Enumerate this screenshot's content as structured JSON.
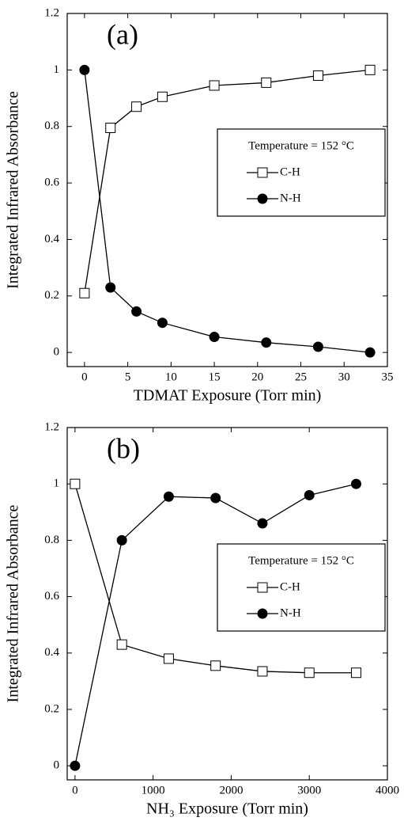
{
  "chart_data": [
    {
      "type": "line",
      "annotation": "(a)",
      "xlabel": "TDMAT Exposure (Torr min)",
      "ylabel": "Integrated Infrared Absorbance",
      "legend_title": "Temperature = 152 °C",
      "x": [
        0,
        3,
        6,
        9,
        15,
        21,
        27,
        33
      ],
      "series": [
        {
          "name": "C-H",
          "color": "#000000",
          "marker": "square",
          "values": [
            0.21,
            0.795,
            0.87,
            0.905,
            0.945,
            0.955,
            0.98,
            1.0
          ]
        },
        {
          "name": "N-H",
          "color": "#000000",
          "marker": "circle",
          "values": [
            1.0,
            0.23,
            0.145,
            0.105,
            0.055,
            0.035,
            0.02,
            0.0
          ]
        }
      ],
      "xlim": [
        -2,
        35
      ],
      "xticks": [
        0,
        5,
        10,
        15,
        20,
        25,
        30,
        35
      ],
      "ylim": [
        -0.05,
        1.2
      ],
      "yticks": [
        0,
        0.2,
        0.4,
        0.6,
        0.8,
        1,
        1.2
      ]
    },
    {
      "type": "line",
      "annotation": "(b)",
      "xlabel": "NH₃ Exposure (Torr min)",
      "ylabel": "Integrated Infrared Absorbance",
      "legend_title": "Temperature = 152 °C",
      "x": [
        0,
        600,
        1200,
        1800,
        2400,
        3000,
        3600
      ],
      "series": [
        {
          "name": "C-H",
          "color": "#000000",
          "marker": "square",
          "values": [
            1.0,
            0.43,
            0.38,
            0.355,
            0.335,
            0.33,
            0.33
          ]
        },
        {
          "name": "N-H",
          "color": "#000000",
          "marker": "circle",
          "values": [
            0,
            0.8,
            0.955,
            0.95,
            0.86,
            0.96,
            1.0
          ]
        }
      ],
      "xlim": [
        -100,
        4000
      ],
      "xticks": [
        0,
        1000,
        2000,
        3000,
        4000
      ],
      "ylim": [
        -0.05,
        1.2
      ],
      "yticks": [
        0,
        0.2,
        0.4,
        0.6,
        0.8,
        1,
        1.2
      ]
    }
  ]
}
